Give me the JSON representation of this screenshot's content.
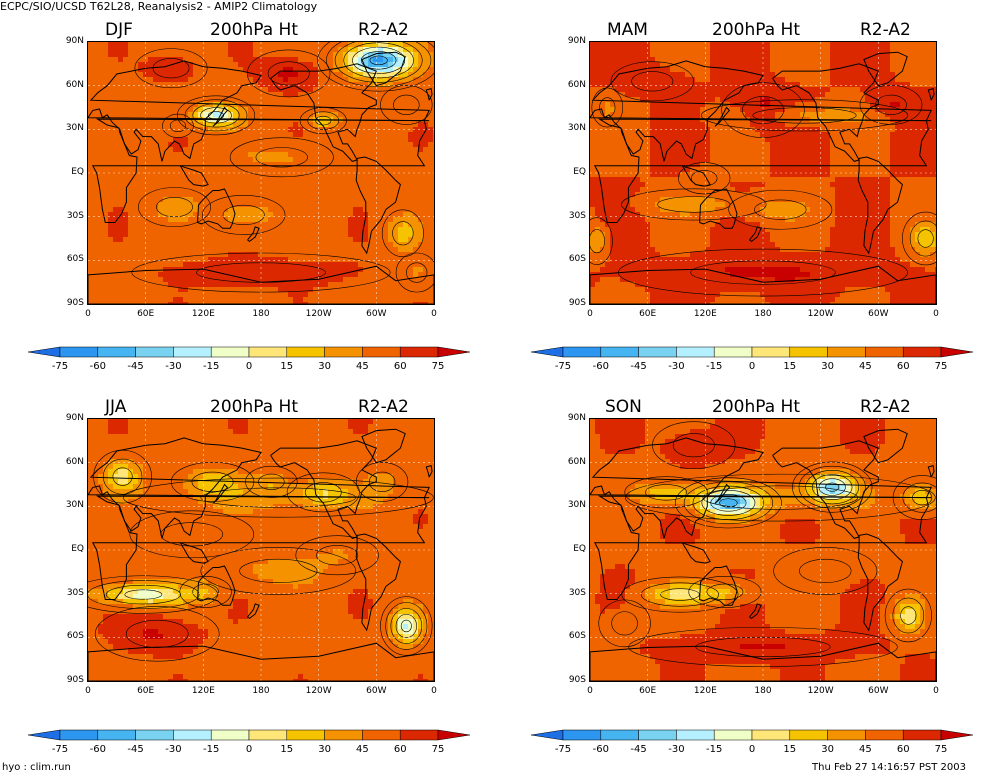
{
  "header": {
    "title": "ECPC/SIO/UCSD T62L28, Reanalysis2 - AMIP2 Climatology"
  },
  "footer": {
    "left": "hyo : clim.run",
    "right": "Thu Feb 27 14:16:57 PST 2003"
  },
  "axes": {
    "lat_labels": [
      "90N",
      "60N",
      "30N",
      "EQ",
      "30S",
      "60S",
      "90S"
    ],
    "lon_labels": [
      "0",
      "60E",
      "120E",
      "180",
      "120W",
      "60W",
      "0"
    ]
  },
  "colorbar": {
    "levels": [
      "-75",
      "-60",
      "-45",
      "-30",
      "-15",
      "0",
      "15",
      "30",
      "45",
      "60",
      "75"
    ],
    "colors": [
      "#1e6ee6",
      "#2d96f0",
      "#46b4f0",
      "#78d2f0",
      "#b4f0ff",
      "#f0ffc8",
      "#ffe678",
      "#f5c300",
      "#f59200",
      "#f06400",
      "#dc2800",
      "#c80000"
    ]
  },
  "panels": [
    {
      "season": "DJF",
      "variable": "200hPa Ht",
      "diff": "R2-A2"
    },
    {
      "season": "MAM",
      "variable": "200hPa Ht",
      "diff": "R2-A2"
    },
    {
      "season": "JJA",
      "variable": "200hPa Ht",
      "diff": "R2-A2"
    },
    {
      "season": "SON",
      "variable": "200hPa Ht",
      "diff": "R2-A2"
    }
  ]
}
